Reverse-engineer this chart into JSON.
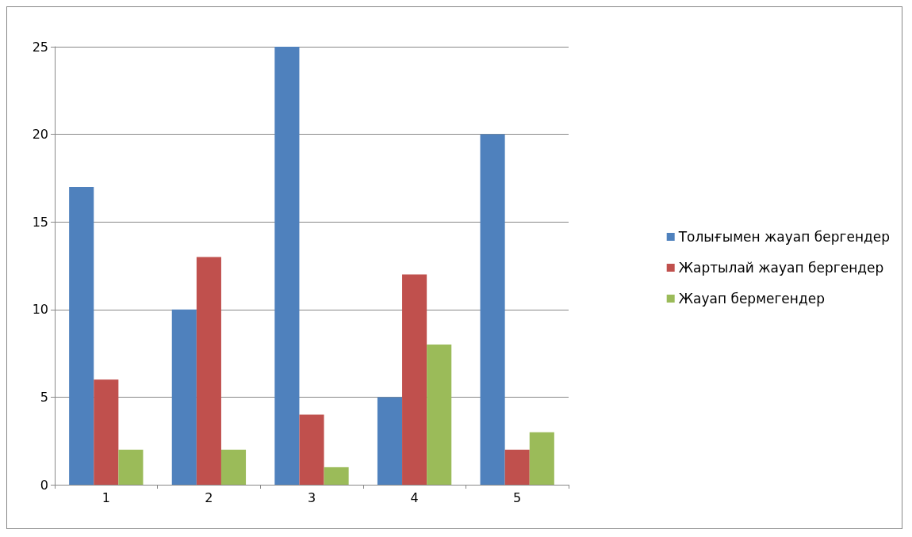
{
  "chart_data": {
    "type": "bar",
    "categories": [
      "1",
      "2",
      "3",
      "4",
      "5"
    ],
    "series": [
      {
        "name": "Толығымен жауап бергендер",
        "color": "#4f81bd",
        "values": [
          17,
          10,
          25,
          5,
          20
        ]
      },
      {
        "name": "Жартылай жауап бергендер",
        "color": "#c0504d",
        "values": [
          6,
          13,
          4,
          12,
          2
        ]
      },
      {
        "name": "Жауап бермегендер",
        "color": "#9bbb59",
        "values": [
          2,
          2,
          1,
          8,
          3
        ]
      }
    ],
    "ylim": [
      0,
      25
    ],
    "yticks": [
      0,
      5,
      10,
      15,
      20,
      25
    ],
    "grid": "y",
    "legend": "right"
  }
}
